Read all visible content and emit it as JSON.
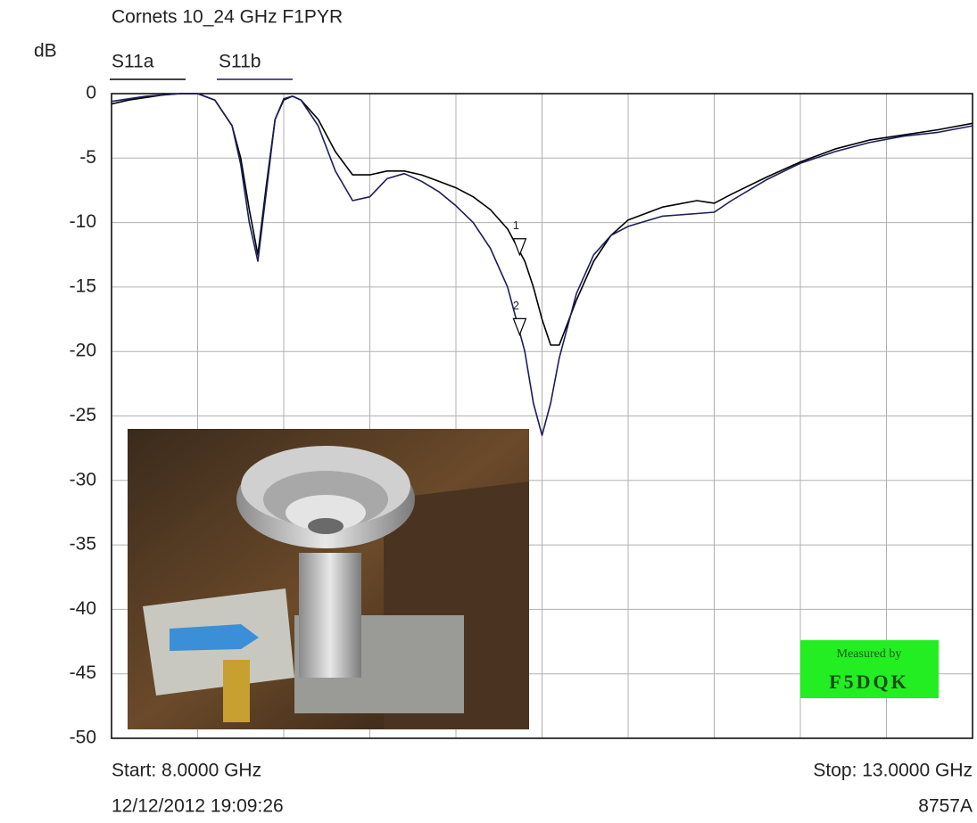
{
  "chart_data": {
    "type": "line",
    "title": "Cornets 10_24 GHz F1PYR",
    "y_label": "dB",
    "x": [
      8.0,
      8.1,
      8.2,
      8.3,
      8.4,
      8.5,
      8.6,
      8.7,
      8.75,
      8.8,
      8.85,
      8.9,
      8.95,
      9.0,
      9.05,
      9.1,
      9.2,
      9.3,
      9.4,
      9.5,
      9.6,
      9.7,
      9.8,
      9.9,
      10.0,
      10.1,
      10.2,
      10.3,
      10.4,
      10.45,
      10.5,
      10.55,
      10.6,
      10.7,
      10.8,
      10.9,
      11.0,
      11.2,
      11.4,
      11.5,
      11.6,
      11.8,
      12.0,
      12.2,
      12.4,
      12.6,
      12.8,
      13.0
    ],
    "series": [
      {
        "name": "S11a",
        "color": "#000000",
        "values": [
          -0.8,
          -0.5,
          -0.3,
          -0.1,
          0,
          0,
          -0.5,
          -2.5,
          -5,
          -9,
          -12.5,
          -7,
          -2,
          -0.5,
          -0.2,
          -0.5,
          -2,
          -4.5,
          -6.3,
          -6.3,
          -6,
          -6,
          -6.3,
          -6.8,
          -7.3,
          -8,
          -9,
          -10.5,
          -13,
          -15,
          -17.5,
          -19.5,
          -19.5,
          -16,
          -13,
          -11,
          -9.8,
          -8.8,
          -8.3,
          -8.5,
          -7.8,
          -6.5,
          -5.3,
          -4.3,
          -3.6,
          -3.2,
          -2.8,
          -2.3
        ]
      },
      {
        "name": "S11b",
        "color": "#1c1c5c",
        "values": [
          -0.6,
          -0.4,
          -0.2,
          -0.1,
          0,
          0,
          -0.5,
          -2.5,
          -5.5,
          -10,
          -13,
          -7.5,
          -2,
          -0.4,
          -0.2,
          -0.5,
          -2.5,
          -6,
          -8.3,
          -8,
          -6.6,
          -6.2,
          -6.8,
          -7.6,
          -8.7,
          -10,
          -12,
          -15,
          -20,
          -24,
          -26.5,
          -24,
          -20.5,
          -15.5,
          -12.5,
          -11,
          -10.3,
          -9.5,
          -9.3,
          -9.2,
          -8.3,
          -6.7,
          -5.4,
          -4.5,
          -3.8,
          -3.3,
          -3.0,
          -2.5
        ]
      }
    ],
    "markers": [
      {
        "label": "1",
        "x": 10.37,
        "value": -12.5
      },
      {
        "label": "2",
        "x": 10.37,
        "value": -18.7
      }
    ],
    "xlim": [
      8,
      13
    ],
    "ylim": [
      -50,
      0
    ],
    "yticks": [
      0,
      -5,
      -10,
      -15,
      -20,
      -25,
      -30,
      -35,
      -40,
      -45,
      -50
    ],
    "xgrid": [
      8.5,
      9,
      9.5,
      10,
      10.5,
      11,
      11.5,
      12,
      12.5
    ],
    "grid": true,
    "start_label": "Start: 8.0000 GHz",
    "stop_label": "Stop: 13.0000 GHz",
    "timestamp": "12/12/2012 19:09:26",
    "instrument": "8757A",
    "badge": [
      "Measured by",
      "F5DQK"
    ]
  }
}
